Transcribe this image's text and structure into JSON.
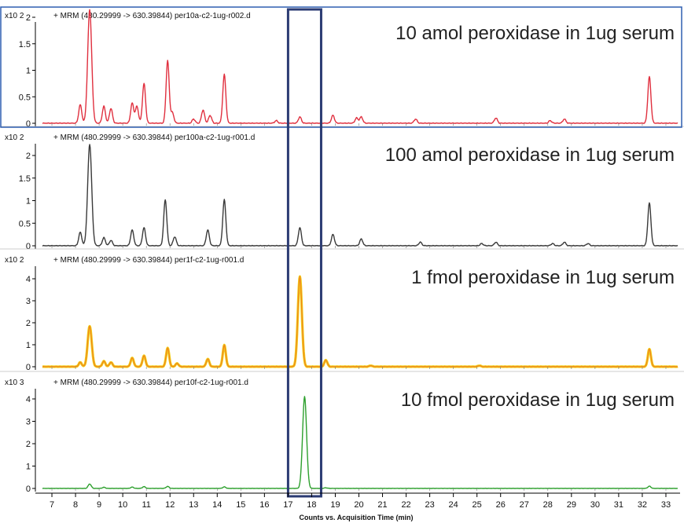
{
  "chart_data": {
    "type": "line",
    "shared_x_axis": {
      "label": "Counts vs. Acquisition Time (min)",
      "ticks": [
        7,
        8,
        9,
        10,
        11,
        12,
        13,
        14,
        15,
        16,
        17,
        18,
        19,
        20,
        21,
        22,
        23,
        24,
        25,
        26,
        27,
        28,
        29,
        30,
        31,
        32,
        33
      ],
      "range": [
        6.3,
        33.6
      ]
    },
    "highlight_window": {
      "x_range": [
        17.0,
        18.4
      ],
      "color": "#2b3b73"
    },
    "panels": [
      {
        "multiplier": "x10 2",
        "header": "+ MRM (480.29999 -> 630.39844) per10a-c2-1ug-r002.d",
        "label": "10 amol peroxidase in 1ug serum",
        "color": "#e0303f",
        "ylim": [
          0,
          2.3
        ],
        "yticks": [
          "0",
          "0.5",
          "1",
          "1.5",
          "2"
        ],
        "peaks": [
          [
            8.2,
            0.35
          ],
          [
            8.6,
            2.15
          ],
          [
            9.2,
            0.32
          ],
          [
            9.5,
            0.28
          ],
          [
            10.4,
            0.38
          ],
          [
            10.6,
            0.32
          ],
          [
            10.9,
            0.75
          ],
          [
            11.9,
            1.18
          ],
          [
            12.1,
            0.2
          ],
          [
            13.0,
            0.08
          ],
          [
            13.4,
            0.25
          ],
          [
            13.7,
            0.15
          ],
          [
            14.3,
            0.92
          ],
          [
            16.5,
            0.05
          ],
          [
            17.5,
            0.12
          ],
          [
            18.9,
            0.15
          ],
          [
            19.9,
            0.1
          ],
          [
            20.1,
            0.12
          ],
          [
            22.4,
            0.08
          ],
          [
            25.8,
            0.1
          ],
          [
            28.1,
            0.05
          ],
          [
            28.7,
            0.08
          ],
          [
            32.3,
            0.88
          ]
        ]
      },
      {
        "multiplier": "x10 2",
        "header": "+ MRM (480.29999 -> 630.39844) per100a-c2-1ug-r001.d",
        "label": "100 amol peroxidase in 1ug serum",
        "color": "#3a3a3a",
        "ylim": [
          0,
          2.3
        ],
        "yticks": [
          "0",
          "0.5",
          "1",
          "1.5",
          "2"
        ],
        "peaks": [
          [
            8.2,
            0.3
          ],
          [
            8.6,
            2.25
          ],
          [
            9.2,
            0.18
          ],
          [
            9.5,
            0.12
          ],
          [
            10.4,
            0.35
          ],
          [
            10.9,
            0.4
          ],
          [
            11.8,
            1.02
          ],
          [
            12.2,
            0.2
          ],
          [
            13.6,
            0.35
          ],
          [
            14.3,
            1.02
          ],
          [
            17.5,
            0.4
          ],
          [
            18.9,
            0.25
          ],
          [
            20.1,
            0.15
          ],
          [
            22.6,
            0.08
          ],
          [
            25.2,
            0.05
          ],
          [
            25.8,
            0.08
          ],
          [
            28.2,
            0.05
          ],
          [
            28.7,
            0.08
          ],
          [
            29.7,
            0.05
          ],
          [
            32.3,
            0.95
          ]
        ]
      },
      {
        "multiplier": "x10 2",
        "header": "+ MRM (480.29999 -> 630.39844) per1f-c2-1ug-r001.d",
        "label": "1 fmol peroxidase in 1ug serum",
        "color": "#f08a1c",
        "fill_color": "#f2d21a",
        "ylim": [
          0,
          4.3
        ],
        "yticks": [
          "0",
          "1",
          "2",
          "3",
          "4"
        ],
        "peaks": [
          [
            8.2,
            0.2
          ],
          [
            8.6,
            1.85
          ],
          [
            9.2,
            0.25
          ],
          [
            9.5,
            0.2
          ],
          [
            10.4,
            0.4
          ],
          [
            10.9,
            0.5
          ],
          [
            11.9,
            0.85
          ],
          [
            12.3,
            0.15
          ],
          [
            13.6,
            0.35
          ],
          [
            14.3,
            0.98
          ],
          [
            17.5,
            4.1
          ],
          [
            18.6,
            0.3
          ],
          [
            20.5,
            0.05
          ],
          [
            25.1,
            0.05
          ],
          [
            32.3,
            0.8
          ]
        ]
      },
      {
        "multiplier": "x10 3",
        "header": "+ MRM (480.29999 -> 630.39844) per10f-c2-1ug-r001.d",
        "label": "10 fmol peroxidase in 1ug serum",
        "color": "#2ea02e",
        "ylim": [
          0,
          4.3
        ],
        "yticks": [
          "0",
          "1",
          "2",
          "3",
          "4"
        ],
        "peaks": [
          [
            8.6,
            0.2
          ],
          [
            9.2,
            0.05
          ],
          [
            10.4,
            0.06
          ],
          [
            10.9,
            0.08
          ],
          [
            11.9,
            0.09
          ],
          [
            14.3,
            0.07
          ],
          [
            17.7,
            4.1
          ],
          [
            18.6,
            0.03
          ],
          [
            32.3,
            0.1
          ]
        ]
      }
    ]
  }
}
